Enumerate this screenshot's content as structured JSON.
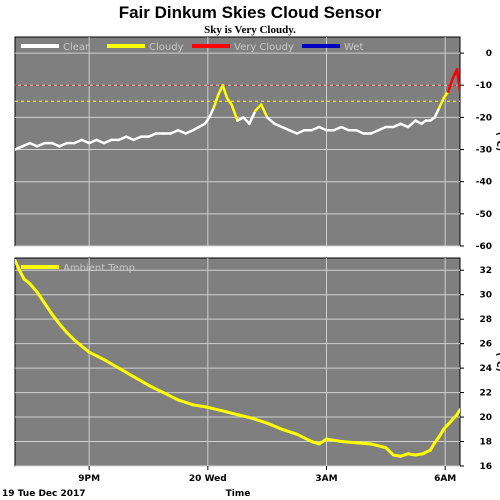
{
  "title": "Fair Dinkum Skies Cloud Sensor",
  "subtitle": "Sky is Very Cloudy.",
  "colors": {
    "panel_bg": "#7f7f7f",
    "grid": "#d0d0d0",
    "clear": "#ffffff",
    "cloudy": "#ffff00",
    "very_cloudy": "#ff0000",
    "wet": "#0000c0",
    "ambient": "#ffff00"
  },
  "chart_data": [
    {
      "type": "line",
      "name": "sky",
      "ylabel": "(°C)",
      "ylim": [
        -60,
        5
      ],
      "yticks": [
        0,
        -10,
        -20,
        -30,
        -40,
        -50,
        -60
      ],
      "legend": [
        {
          "label": "Clear",
          "color": "#ffffff"
        },
        {
          "label": "Cloudy",
          "color": "#ffff00"
        },
        {
          "label": "Very Cloudy",
          "color": "#ff0000"
        },
        {
          "label": "Wet",
          "color": "#0000c0"
        }
      ],
      "thresholds": [
        {
          "value": -10,
          "color": "#ff0000"
        },
        {
          "value": -15,
          "color": "#ffff00"
        }
      ],
      "x": [
        0.0,
        0.25,
        0.5,
        0.75,
        1.0,
        1.25,
        1.5,
        1.75,
        2.0,
        2.25,
        2.5,
        2.75,
        3.0,
        3.25,
        3.5,
        3.75,
        4.0,
        4.25,
        4.5,
        4.75,
        5.0,
        5.25,
        5.5,
        5.75,
        6.0,
        6.2,
        6.4,
        6.55,
        6.7,
        6.85,
        7.0,
        7.15,
        7.3,
        7.5,
        7.7,
        7.9,
        8.1,
        8.3,
        8.5,
        8.75,
        9.0,
        9.25,
        9.5,
        9.75,
        10.0,
        10.25,
        10.5,
        10.75,
        11.0,
        11.25,
        11.5,
        11.75,
        12.0,
        12.25,
        12.5,
        12.75,
        13.0,
        13.25,
        13.5,
        13.7,
        13.85,
        14.0,
        14.15,
        14.3,
        14.45,
        14.6,
        14.75,
        14.9,
        15.0
      ],
      "values": [
        -30,
        -29,
        -28,
        -29,
        -28,
        -28,
        -29,
        -28,
        -28,
        -27,
        -28,
        -27,
        -28,
        -27,
        -27,
        -26,
        -27,
        -26,
        -26,
        -25,
        -25,
        -25,
        -24,
        -25,
        -24,
        -23,
        -22,
        -20,
        -17,
        -13,
        -10,
        -14,
        -16,
        -21,
        -20,
        -22,
        -18,
        -16,
        -20,
        -22,
        -23,
        -24,
        -25,
        -24,
        -24,
        -23,
        -24,
        -24,
        -23,
        -24,
        -24,
        -25,
        -25,
        -24,
        -23,
        -23,
        -22,
        -23,
        -21,
        -22,
        -21,
        -21,
        -20,
        -17,
        -14,
        -12,
        -8,
        -5,
        -12
      ]
    },
    {
      "type": "line",
      "name": "ambient",
      "ylabel": "(°C)",
      "ylim": [
        16,
        33
      ],
      "yticks": [
        32,
        30,
        28,
        26,
        24,
        22,
        20,
        18,
        16
      ],
      "legend": [
        {
          "label": "Ambient Temp",
          "color": "#ffff00"
        }
      ],
      "x": [
        0.0,
        0.15,
        0.3,
        0.5,
        0.75,
        1.0,
        1.25,
        1.5,
        1.75,
        2.0,
        2.5,
        3.0,
        3.5,
        4.0,
        4.5,
        5.0,
        5.5,
        6.0,
        6.5,
        7.0,
        7.5,
        8.0,
        8.5,
        9.0,
        9.5,
        10.0,
        10.25,
        10.5,
        10.75,
        11.0,
        11.5,
        12.0,
        12.5,
        12.75,
        13.0,
        13.25,
        13.5,
        13.75,
        14.0,
        14.15,
        14.3,
        14.45,
        14.6,
        14.75,
        14.9,
        15.0
      ],
      "values": [
        32.8,
        32.0,
        31.3,
        30.9,
        30.2,
        29.3,
        28.4,
        27.6,
        26.9,
        26.3,
        25.3,
        24.7,
        24.0,
        23.3,
        22.6,
        22.0,
        21.4,
        21.0,
        20.8,
        20.5,
        20.2,
        19.9,
        19.5,
        19.0,
        18.6,
        18.0,
        17.8,
        18.2,
        18.1,
        18.0,
        17.9,
        17.8,
        17.5,
        16.9,
        16.8,
        17.0,
        16.9,
        17.0,
        17.3,
        17.9,
        18.4,
        19.0,
        19.4,
        19.8,
        20.2,
        20.6
      ]
    }
  ],
  "x_axis": {
    "label": "Time",
    "date_label": "19 Tue Dec 2017",
    "range": [
      0,
      15
    ],
    "ticks": [
      {
        "x": 2.5,
        "label": "9PM"
      },
      {
        "x": 6.5,
        "label": "20 Wed"
      },
      {
        "x": 10.5,
        "label": "3AM"
      },
      {
        "x": 14.5,
        "label": "6AM"
      }
    ]
  }
}
